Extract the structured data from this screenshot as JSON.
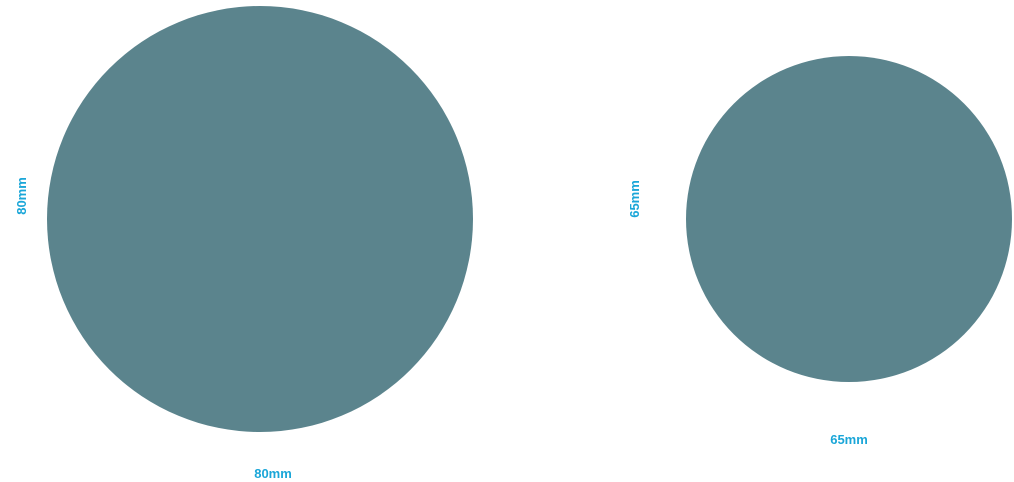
{
  "colors": {
    "circle_fill": "#5b848d",
    "label_color": "#1aa6d8",
    "background": "#ffffff"
  },
  "large_circle": {
    "width_label": "80mm",
    "height_label": "80mm"
  },
  "small_circle": {
    "width_label": "65mm",
    "height_label": "65mm"
  }
}
